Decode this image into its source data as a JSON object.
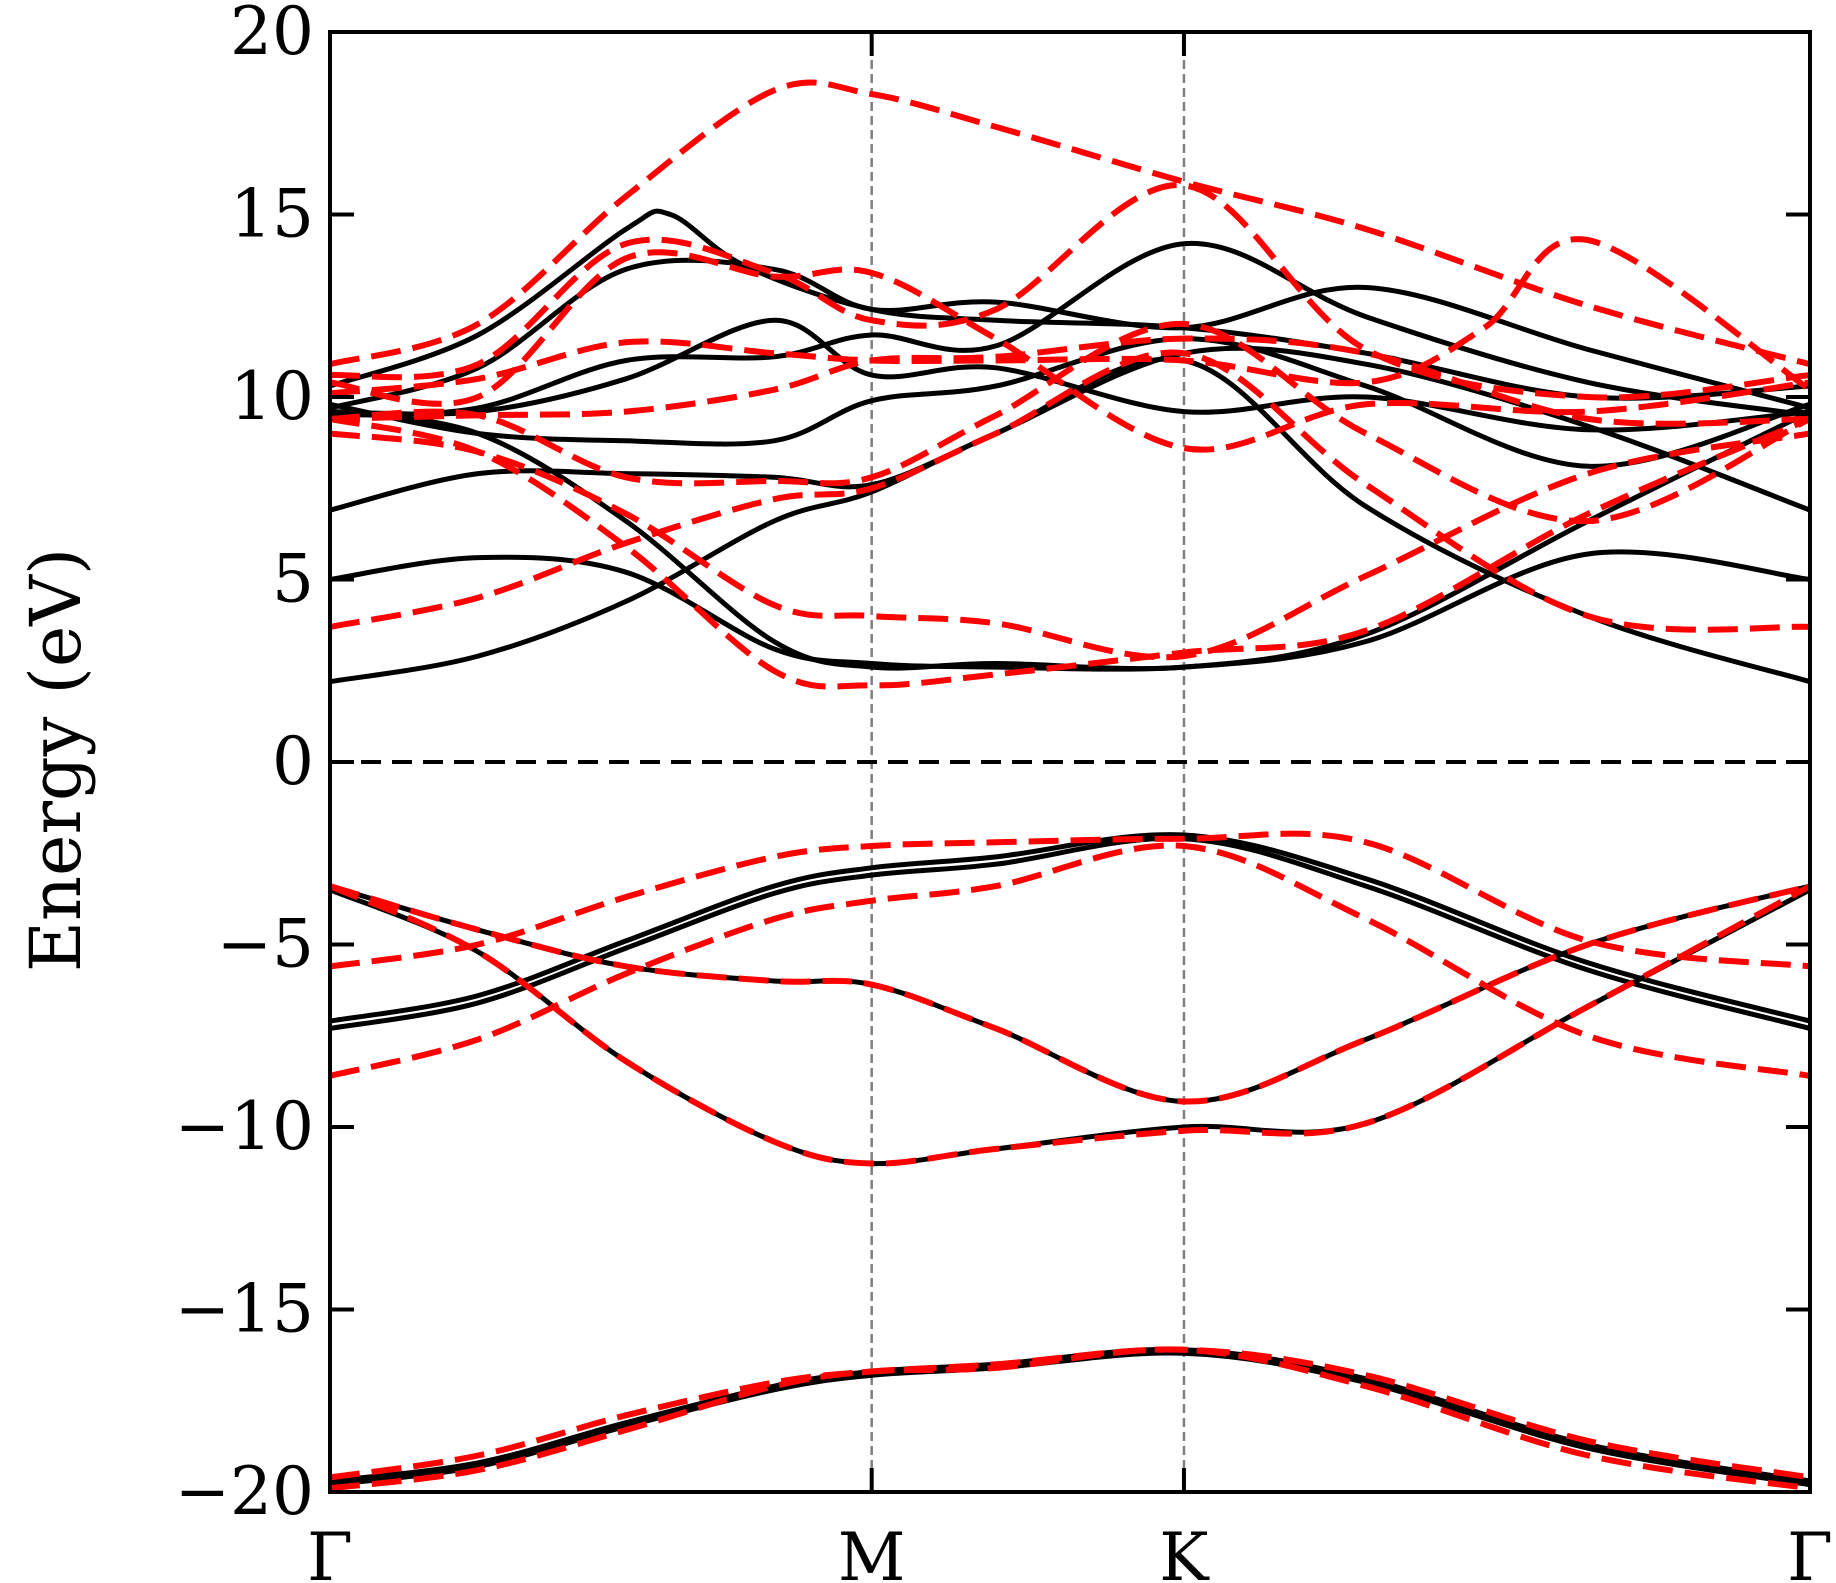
{
  "chart_data": {
    "type": "line",
    "title": "",
    "ylabel": "Energy (eV)",
    "xlabel": "",
    "ylim": [
      -20,
      20
    ],
    "yticks": [
      -20,
      -15,
      -10,
      -5,
      0,
      5,
      10,
      15,
      20
    ],
    "ytick_labels": [
      "−20",
      "−15",
      "−10",
      "−5",
      "0",
      "5",
      "10",
      "15",
      "20"
    ],
    "xlim": [
      0,
      1
    ],
    "xticks": [
      0,
      0.366,
      0.577,
      1.0
    ],
    "xtick_labels": [
      "Γ",
      "M",
      "K",
      "Γ"
    ],
    "fermi_level": 0,
    "grid": false,
    "legend": "none",
    "colors": {
      "solid": "#000000",
      "dashed": "#ff0000",
      "kpath": "#808080"
    },
    "series": [
      {
        "style": "solid",
        "bands": [
          {
            "x": [
              0,
              0.1,
              0.2,
              0.3,
              0.366,
              0.45,
              0.577,
              0.7,
              0.85,
              1.0
            ],
            "y": [
              -19.7,
              -19.2,
              -18.1,
              -17.1,
              -16.7,
              -16.5,
              -16.1,
              -16.9,
              -18.7,
              -19.7
            ]
          },
          {
            "x": [
              0,
              0.1,
              0.2,
              0.3,
              0.366,
              0.45,
              0.577,
              0.7,
              0.85,
              1.0
            ],
            "y": [
              -19.8,
              -19.3,
              -18.2,
              -17.2,
              -16.8,
              -16.6,
              -16.2,
              -17.0,
              -18.8,
              -19.8
            ]
          },
          {
            "x": [
              0,
              0.1,
              0.2,
              0.3,
              0.366,
              0.45,
              0.577,
              0.7,
              0.85,
              1.0
            ],
            "y": [
              -3.5,
              -5.2,
              -8.2,
              -10.4,
              -11.0,
              -10.6,
              -10.0,
              -9.9,
              -6.7,
              -3.5
            ]
          },
          {
            "x": [
              0,
              0.1,
              0.2,
              0.3,
              0.366,
              0.45,
              0.577,
              0.7,
              0.85,
              1.0
            ],
            "y": [
              -3.4,
              -4.6,
              -5.6,
              -6.0,
              -6.1,
              -7.3,
              -9.3,
              -7.6,
              -5.0,
              -3.4
            ]
          },
          {
            "x": [
              0,
              0.1,
              0.2,
              0.3,
              0.366,
              0.45,
              0.577,
              0.7,
              0.85,
              1.0
            ],
            "y": [
              -7.3,
              -6.6,
              -5.1,
              -3.6,
              -3.1,
              -2.8,
              -2.1,
              -3.4,
              -5.7,
              -7.3
            ]
          },
          {
            "x": [
              0,
              0.1,
              0.2,
              0.3,
              0.366,
              0.45,
              0.577,
              0.7,
              0.85,
              1.0
            ],
            "y": [
              -7.1,
              -6.4,
              -4.9,
              -3.4,
              -2.9,
              -2.6,
              -2.0,
              -3.2,
              -5.5,
              -7.1
            ]
          },
          {
            "x": [
              0,
              0.1,
              0.2,
              0.3,
              0.366,
              0.45,
              0.577,
              0.7,
              0.85,
              1.0
            ],
            "y": [
              2.2,
              2.9,
              4.4,
              6.6,
              7.4,
              9.0,
              11.0,
              7.0,
              4.0,
              2.2
            ]
          },
          {
            "x": [
              0,
              0.1,
              0.2,
              0.3,
              0.366,
              0.45,
              0.577,
              0.7,
              0.85,
              1.0
            ],
            "y": [
              5.0,
              5.6,
              5.2,
              3.1,
              2.7,
              2.6,
              2.6,
              3.3,
              5.7,
              5.0
            ]
          },
          {
            "x": [
              0,
              0.1,
              0.2,
              0.3,
              0.366,
              0.45,
              0.577,
              0.7,
              0.85,
              1.0
            ],
            "y": [
              9.6,
              9.0,
              6.6,
              3.3,
              2.6,
              2.7,
              2.6,
              3.5,
              6.6,
              9.6
            ]
          },
          {
            "x": [
              0,
              0.1,
              0.2,
              0.3,
              0.366,
              0.45,
              0.577,
              0.7,
              0.85,
              1.0
            ],
            "y": [
              6.9,
              7.9,
              7.9,
              7.8,
              7.6,
              9.0,
              11.2,
              10.9,
              9.2,
              6.9
            ]
          },
          {
            "x": [
              0,
              0.1,
              0.2,
              0.3,
              0.366,
              0.45,
              0.577,
              0.7,
              0.85,
              1.0
            ],
            "y": [
              9.8,
              9.0,
              8.8,
              8.8,
              9.9,
              10.3,
              11.6,
              10.3,
              8.1,
              9.8
            ]
          },
          {
            "x": [
              0,
              0.1,
              0.2,
              0.3,
              0.366,
              0.45,
              0.577,
              0.7,
              0.85,
              1.0
            ],
            "y": [
              9.6,
              9.6,
              10.5,
              12.1,
              10.6,
              10.8,
              9.6,
              10.0,
              9.1,
              9.6
            ]
          },
          {
            "x": [
              0,
              0.1,
              0.2,
              0.3,
              0.366,
              0.45,
              0.577,
              0.7,
              0.85,
              1.0
            ],
            "y": [
              9.5,
              9.7,
              11.0,
              11.1,
              11.7,
              11.4,
              14.2,
              12.2,
              10.4,
              9.5
            ]
          },
          {
            "x": [
              0,
              0.1,
              0.2,
              0.3,
              0.366,
              0.45,
              0.577,
              0.7,
              0.85,
              1.0
            ],
            "y": [
              9.7,
              10.8,
              13.5,
              13.5,
              12.4,
              12.6,
              11.9,
              13.0,
              11.3,
              9.7
            ]
          },
          {
            "x": [
              0,
              0.1,
              0.2,
              0.23,
              0.28,
              0.366,
              0.45,
              0.577,
              0.7,
              0.85,
              1.0
            ],
            "y": [
              10.3,
              11.7,
              14.6,
              15.0,
              13.6,
              12.4,
              12.1,
              11.9,
              11.2,
              10.0,
              10.3
            ]
          }
        ]
      },
      {
        "style": "dashed",
        "bands": [
          {
            "x": [
              0,
              0.1,
              0.2,
              0.3,
              0.366,
              0.45,
              0.577,
              0.7,
              0.85,
              1.0
            ],
            "y": [
              -19.6,
              -19.0,
              -17.9,
              -17.0,
              -16.7,
              -16.5,
              -16.1,
              -16.8,
              -18.6,
              -19.6
            ]
          },
          {
            "x": [
              0,
              0.1,
              0.2,
              0.3,
              0.366,
              0.45,
              0.577,
              0.7,
              0.85,
              1.0
            ],
            "y": [
              -19.9,
              -19.4,
              -18.3,
              -17.1,
              -16.7,
              -16.6,
              -16.1,
              -17.1,
              -19.0,
              -19.9
            ]
          },
          {
            "x": [
              0,
              0.1,
              0.2,
              0.3,
              0.366,
              0.45,
              0.577,
              0.7,
              0.85,
              1.0
            ],
            "y": [
              -3.4,
              -5.2,
              -8.2,
              -10.4,
              -11.0,
              -10.6,
              -10.1,
              -9.9,
              -6.7,
              -3.4
            ]
          },
          {
            "x": [
              0,
              0.1,
              0.2,
              0.3,
              0.366,
              0.45,
              0.577,
              0.7,
              0.85,
              1.0
            ],
            "y": [
              -3.4,
              -4.6,
              -5.6,
              -6.0,
              -6.1,
              -7.3,
              -9.3,
              -7.6,
              -5.0,
              -3.4
            ]
          },
          {
            "x": [
              0,
              0.1,
              0.2,
              0.3,
              0.366,
              0.45,
              0.577,
              0.7,
              0.85,
              1.0
            ],
            "y": [
              -8.6,
              -7.6,
              -5.8,
              -4.3,
              -3.8,
              -3.4,
              -2.3,
              -4.3,
              -7.5,
              -8.6
            ]
          },
          {
            "x": [
              0,
              0.1,
              0.2,
              0.3,
              0.366,
              0.45,
              0.577,
              0.7,
              0.85,
              1.0
            ],
            "y": [
              -5.6,
              -5.0,
              -3.7,
              -2.6,
              -2.3,
              -2.2,
              -2.1,
              -2.2,
              -4.9,
              -5.6
            ]
          },
          {
            "x": [
              0,
              0.1,
              0.2,
              0.3,
              0.366,
              0.45,
              0.577,
              0.7,
              0.85,
              1.0
            ],
            "y": [
              3.7,
              4.5,
              6.0,
              7.2,
              7.5,
              9.0,
              11.2,
              7.6,
              4.0,
              3.7
            ]
          },
          {
            "x": [
              0,
              0.1,
              0.2,
              0.3,
              0.366,
              0.45,
              0.577,
              0.7,
              0.85,
              1.0
            ],
            "y": [
              9.4,
              8.5,
              5.9,
              2.5,
              2.1,
              2.4,
              3.0,
              3.6,
              6.8,
              9.4
            ]
          },
          {
            "x": [
              0,
              0.1,
              0.2,
              0.3,
              0.366,
              0.45,
              0.577,
              0.7,
              0.85,
              1.0
            ],
            "y": [
              9.0,
              8.5,
              6.8,
              4.3,
              4.0,
              3.8,
              2.9,
              5.1,
              7.9,
              9.0
            ]
          },
          {
            "x": [
              0,
              0.1,
              0.2,
              0.3,
              0.366,
              0.45,
              0.577,
              0.7,
              0.85,
              1.0
            ],
            "y": [
              9.4,
              9.5,
              9.6,
              10.2,
              11.0,
              11.1,
              11.6,
              11.2,
              9.4,
              9.4
            ]
          },
          {
            "x": [
              0,
              0.1,
              0.2,
              0.3,
              0.366,
              0.45,
              0.577,
              0.7,
              0.85,
              1.0
            ],
            "y": [
              9.4,
              9.5,
              7.8,
              7.7,
              7.8,
              9.5,
              12.0,
              9.0,
              6.6,
              9.4
            ]
          },
          {
            "x": [
              0,
              0.1,
              0.2,
              0.3,
              0.366,
              0.45,
              0.577,
              0.7,
              0.85,
              1.0
            ],
            "y": [
              10.4,
              10.0,
              13.8,
              13.3,
              13.4,
              11.6,
              8.6,
              9.8,
              9.6,
              10.4
            ]
          },
          {
            "x": [
              0,
              0.1,
              0.2,
              0.3,
              0.366,
              0.45,
              0.577,
              0.7,
              0.85,
              1.0
            ],
            "y": [
              10.6,
              10.9,
              14.2,
              13.4,
              12.1,
              12.4,
              15.8,
              11.3,
              10.0,
              10.6
            ]
          },
          {
            "x": [
              0,
              0.1,
              0.2,
              0.3,
              0.366,
              0.45,
              0.577,
              0.7,
              0.78,
              0.85,
              1.0
            ],
            "y": [
              10.1,
              10.5,
              11.5,
              11.2,
              11.0,
              11.0,
              11.0,
              10.4,
              11.9,
              14.3,
              10.2
            ]
          },
          {
            "x": [
              0,
              0.1,
              0.2,
              0.3,
              0.366,
              0.45,
              0.577,
              0.7,
              0.85,
              1.0
            ],
            "y": [
              10.9,
              12.0,
              15.5,
              18.4,
              18.3,
              17.4,
              15.9,
              14.6,
              12.5,
              10.9
            ]
          }
        ]
      }
    ]
  }
}
